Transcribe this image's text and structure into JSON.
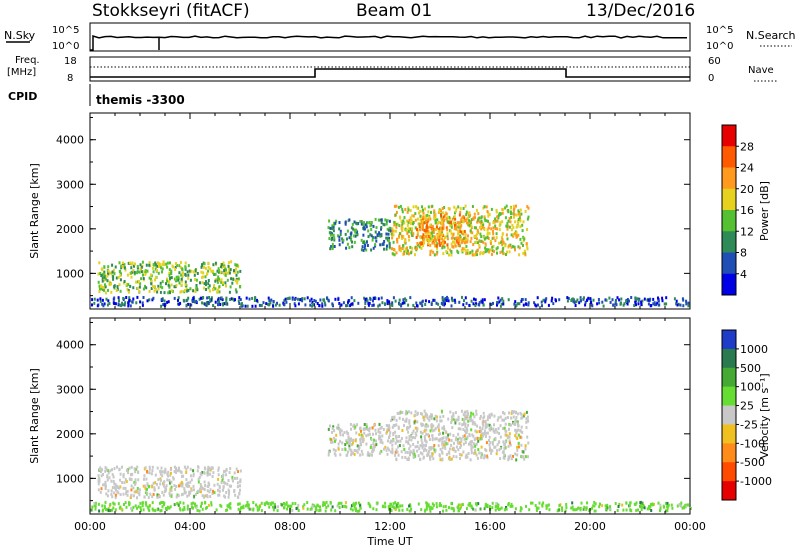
{
  "header": {
    "radar": "Stokkseyri (fitACF)",
    "beam": "Beam 01",
    "date": "13/Dec/2016"
  },
  "panels": {
    "nsky": {
      "label": "N.Sky",
      "ticks": [
        "10^5",
        "10^0"
      ]
    },
    "nsearch": {
      "label": "N.Search",
      "ticks": [
        "10^5",
        "10^0"
      ]
    },
    "freq": {
      "label_line1": "Freq.",
      "label_line2": "[MHz]",
      "ticks": [
        "18",
        "8"
      ]
    },
    "nave": {
      "label": "Nave",
      "ticks": [
        "60",
        "0"
      ]
    },
    "cpid": {
      "label": "CPID",
      "value": "themis -3300"
    }
  },
  "chart_data": [
    {
      "type": "heatmap",
      "name": "power",
      "ylabel": "Slant Range [km]",
      "xlabel": "",
      "y_ticks": [
        "1000",
        "2000",
        "3000",
        "4000"
      ],
      "ylim": [
        200,
        4600
      ],
      "colorbar": {
        "label": "Power [dB]",
        "ticks": [
          "4",
          "8",
          "12",
          "16",
          "20",
          "24",
          "28"
        ],
        "colors": [
          "#0000e6",
          "#1f4fb4",
          "#2e8b57",
          "#55c032",
          "#e6d21e",
          "#ff9a1e",
          "#ff5a00",
          "#e60000"
        ]
      },
      "regions": [
        {
          "t0": 0.3,
          "t1": 6.0,
          "r0": 550,
          "r1": 1250,
          "level": 3
        },
        {
          "t0": 9.5,
          "t1": 12.0,
          "r0": 1500,
          "r1": 2200,
          "level": 2
        },
        {
          "t0": 12.0,
          "t1": 17.5,
          "r0": 1400,
          "r1": 2500,
          "level": 4
        },
        {
          "t0": 13.0,
          "t1": 15.0,
          "r0": 1600,
          "r1": 2300,
          "level": 5
        },
        {
          "t0": 0.0,
          "t1": 24.0,
          "r0": 250,
          "r1": 450,
          "level": 1
        }
      ]
    },
    {
      "type": "heatmap",
      "name": "velocity",
      "ylabel": "Slant Range [km]",
      "xlabel": "Time UT",
      "x_ticks": [
        "00:00",
        "04:00",
        "08:00",
        "12:00",
        "16:00",
        "20:00",
        "00:00"
      ],
      "y_ticks": [
        "1000",
        "2000",
        "3000",
        "4000"
      ],
      "ylim": [
        200,
        4600
      ],
      "colorbar": {
        "label": "Velocity [m s⁻¹]",
        "ticks": [
          "1000",
          "500",
          "100",
          "25",
          "-25",
          "-100",
          "-500",
          "-1000"
        ],
        "colors": [
          "#1e3cc8",
          "#2a7a50",
          "#44aa33",
          "#66dd33",
          "#c8c8c8",
          "#f0c020",
          "#ff8c1a",
          "#ff4a00",
          "#e60000"
        ]
      },
      "regions": [
        {
          "t0": 0.3,
          "t1": 6.0,
          "r0": 550,
          "r1": 1250,
          "level": 4
        },
        {
          "t0": 9.5,
          "t1": 12.0,
          "r0": 1500,
          "r1": 2200,
          "level": 4
        },
        {
          "t0": 12.0,
          "t1": 17.5,
          "r0": 1400,
          "r1": 2500,
          "level": 4
        },
        {
          "t0": 0.0,
          "t1": 24.0,
          "r0": 250,
          "r1": 450,
          "level": 3
        }
      ]
    }
  ]
}
